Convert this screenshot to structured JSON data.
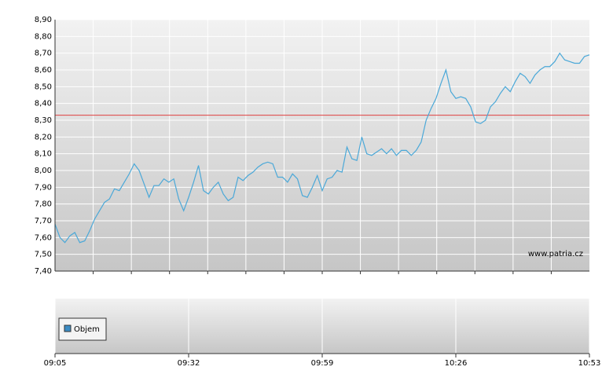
{
  "chart_data": {
    "type": "line",
    "x": [
      "09:05",
      "09:06",
      "09:07",
      "09:08",
      "09:09",
      "09:10",
      "09:11",
      "09:12",
      "09:13",
      "09:14",
      "09:15",
      "09:16",
      "09:17",
      "09:18",
      "09:19",
      "09:20",
      "09:21",
      "09:22",
      "09:23",
      "09:24",
      "09:25",
      "09:26",
      "09:27",
      "09:28",
      "09:29",
      "09:30",
      "09:31",
      "09:32",
      "09:33",
      "09:34",
      "09:35",
      "09:36",
      "09:37",
      "09:38",
      "09:39",
      "09:40",
      "09:41",
      "09:42",
      "09:43",
      "09:44",
      "09:45",
      "09:46",
      "09:47",
      "09:48",
      "09:49",
      "09:50",
      "09:51",
      "09:52",
      "09:53",
      "09:54",
      "09:55",
      "09:56",
      "09:57",
      "09:58",
      "09:59",
      "10:00",
      "10:01",
      "10:02",
      "10:03",
      "10:04",
      "10:05",
      "10:06",
      "10:07",
      "10:08",
      "10:09",
      "10:10",
      "10:11",
      "10:12",
      "10:13",
      "10:14",
      "10:15",
      "10:16",
      "10:17",
      "10:18",
      "10:19",
      "10:20",
      "10:21",
      "10:22",
      "10:23",
      "10:24",
      "10:25",
      "10:26",
      "10:27",
      "10:28",
      "10:29",
      "10:30",
      "10:31",
      "10:32",
      "10:33",
      "10:34",
      "10:35",
      "10:36",
      "10:37",
      "10:38",
      "10:39",
      "10:40",
      "10:41",
      "10:42",
      "10:43",
      "10:44",
      "10:45",
      "10:46",
      "10:47",
      "10:48",
      "10:49",
      "10:50",
      "10:51",
      "10:52",
      "10:53"
    ],
    "series": [
      {
        "color": "#4aa8d8",
        "values": [
          7.68,
          7.6,
          7.57,
          7.61,
          7.63,
          7.57,
          7.58,
          7.64,
          7.71,
          7.76,
          7.81,
          7.83,
          7.89,
          7.88,
          7.93,
          7.98,
          8.04,
          8.0,
          7.92,
          7.84,
          7.91,
          7.91,
          7.95,
          7.93,
          7.95,
          7.83,
          7.76,
          7.84,
          7.93,
          8.03,
          7.88,
          7.86,
          7.9,
          7.93,
          7.86,
          7.82,
          7.84,
          7.96,
          7.94,
          7.97,
          7.99,
          8.02,
          8.04,
          8.05,
          8.04,
          7.96,
          7.96,
          7.93,
          7.98,
          7.95,
          7.85,
          7.84,
          7.9,
          7.97,
          7.88,
          7.95,
          7.96,
          8.0,
          7.99,
          8.14,
          8.07,
          8.06,
          8.2,
          8.1,
          8.09,
          8.11,
          8.13,
          8.1,
          8.13,
          8.09,
          8.12,
          8.12,
          8.09,
          8.12,
          8.17,
          8.3,
          8.37,
          8.43,
          8.52,
          8.6,
          8.47,
          8.43,
          8.44,
          8.43,
          8.38,
          8.29,
          8.28,
          8.3,
          8.38,
          8.41,
          8.46,
          8.5,
          8.47,
          8.53,
          8.58,
          8.56,
          8.52,
          8.57,
          8.6,
          8.62,
          8.62,
          8.65,
          8.7,
          8.66,
          8.65,
          8.64,
          8.64,
          8.68,
          8.69
        ]
      }
    ],
    "xlim": [
      "09:05",
      "10:53"
    ],
    "xticks": [
      "09:05",
      "09:32",
      "09:59",
      "10:26",
      "10:53"
    ],
    "ylim": [
      7.4,
      8.9
    ],
    "yticks": [
      {
        "value": 7.4,
        "label": "7,40"
      },
      {
        "value": 7.5,
        "label": "7,50"
      },
      {
        "value": 7.6,
        "label": "7,60"
      },
      {
        "value": 7.7,
        "label": "7,70"
      },
      {
        "value": 7.8,
        "label": "7,80"
      },
      {
        "value": 7.9,
        "label": "7,90"
      },
      {
        "value": 8.0,
        "label": "8,00"
      },
      {
        "value": 8.1,
        "label": "8,10"
      },
      {
        "value": 8.2,
        "label": "8,20"
      },
      {
        "value": 8.3,
        "label": "8,30"
      },
      {
        "value": 8.4,
        "label": "8,40"
      },
      {
        "value": 8.5,
        "label": "8,50"
      },
      {
        "value": 8.6,
        "label": "8,60"
      },
      {
        "value": 8.7,
        "label": "8,70"
      },
      {
        "value": 8.8,
        "label": "8,80"
      },
      {
        "value": 8.9,
        "label": "8,90"
      }
    ],
    "reference_line": {
      "value": 8.33,
      "color": "#e04040"
    },
    "watermark": "www.patria.cz",
    "volume_legend": {
      "name": "Objem",
      "color": "#3c8cc4"
    },
    "grid": true
  }
}
